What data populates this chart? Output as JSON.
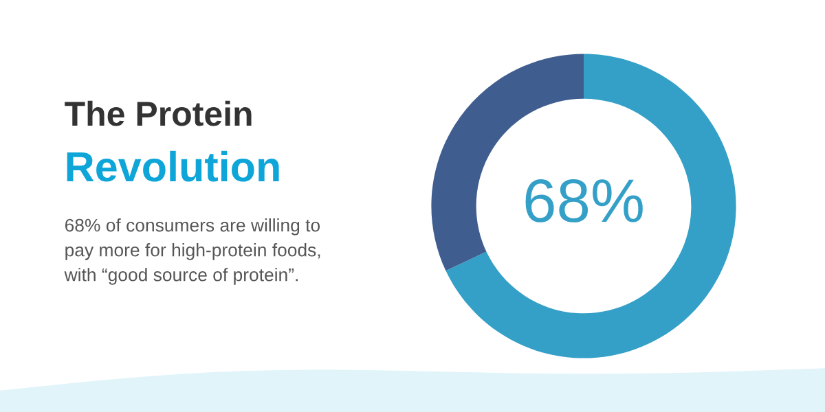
{
  "chart_data": {
    "type": "donut",
    "title": "The Protein",
    "subtitle": "Revolution",
    "categories": [
      null,
      null
    ],
    "values": [
      68,
      32
    ],
    "colors": [
      "#34a0c8",
      "#3f5d8f"
    ],
    "value_labels": [
      "68%",
      null
    ],
    "annotations": [
      "68% of consumers are willing to\npay more for high-protein foods,\nwith “good source of protein”."
    ]
  }
}
